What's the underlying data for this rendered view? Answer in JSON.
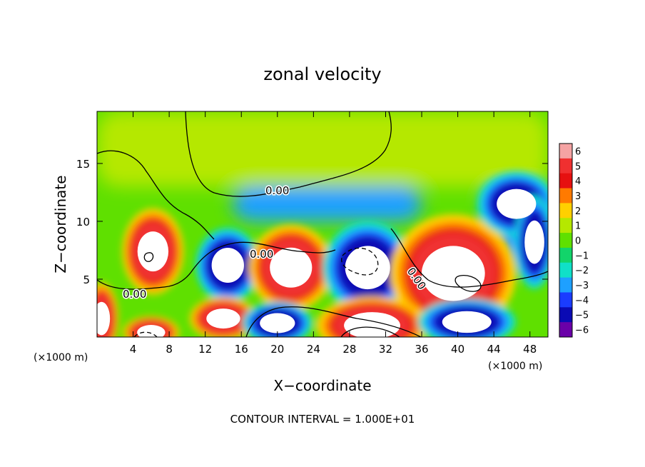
{
  "chart_data": {
    "type": "heatmap",
    "title": "zonal velocity",
    "xlabel": "X−coordinate",
    "ylabel": "Z−coordinate",
    "x_unit": "(×1000 m)",
    "x_unit_right": "(×1000 m)",
    "xlim": [
      0,
      50
    ],
    "ylim": [
      0,
      19.5
    ],
    "x_ticks": [
      4,
      8,
      12,
      16,
      20,
      24,
      28,
      32,
      36,
      40,
      44,
      48
    ],
    "x_tick_labels": [
      "4",
      "8",
      "12",
      "16",
      "20",
      "24",
      "28",
      "32",
      "36",
      "40",
      "44",
      "48"
    ],
    "y_ticks": [
      5,
      10,
      15
    ],
    "y_tick_labels": [
      "5",
      "10",
      "15"
    ],
    "footer": "CONTOUR INTERVAL = 1.000E+01",
    "contour_labels": [
      "0.00",
      "0.00",
      "0.00",
      "0.00"
    ],
    "colorbar": {
      "levels": [
        6,
        5,
        4,
        3,
        2,
        1,
        0,
        -1,
        -2,
        -3,
        -4,
        -5,
        -6
      ],
      "labels": [
        "6",
        "5",
        "4",
        "3",
        "2",
        "1",
        "0",
        "−1",
        "−2",
        "−3",
        "−4",
        "−5",
        "−6"
      ],
      "colors": [
        "#f5a3a3",
        "#f03030",
        "#e61010",
        "#ff7a00",
        "#ffd000",
        "#b5e800",
        "#5fe000",
        "#12d46a",
        "#10e0c8",
        "#1ea0ff",
        "#1a3cff",
        "#0a0ab4",
        "#6a00a8"
      ]
    },
    "features": [
      {
        "kind": "upper-region",
        "x": [
          0,
          50
        ],
        "z": [
          13,
          19.5
        ],
        "value": 1
      },
      {
        "kind": "jet",
        "x": [
          15,
          36
        ],
        "z": [
          10,
          13
        ],
        "value": -3
      },
      {
        "kind": "jet",
        "x": [
          43,
          50
        ],
        "z": [
          6,
          13
        ],
        "value": -3
      },
      {
        "kind": "extreme",
        "x": 6.2,
        "z": 7.4,
        "rx": 2.2,
        "rz": 2.4,
        "value": 6
      },
      {
        "kind": "extreme",
        "x": 14.5,
        "z": 6.2,
        "rx": 2.3,
        "rz": 2.1,
        "value": -5
      },
      {
        "kind": "extreme",
        "x": 21.5,
        "z": 6.0,
        "rx": 3.0,
        "rz": 2.4,
        "value": 6
      },
      {
        "kind": "extreme",
        "x": 30.0,
        "z": 6.0,
        "rx": 3.2,
        "rz": 2.6,
        "value": -6
      },
      {
        "kind": "extreme",
        "x": 39.5,
        "z": 5.5,
        "rx": 4.5,
        "rz": 3.3,
        "value": 6
      },
      {
        "kind": "extreme",
        "x": 46.5,
        "z": 11.5,
        "rx": 2.8,
        "rz": 1.8,
        "value": -6
      },
      {
        "kind": "extreme",
        "x": 48.5,
        "z": 8.2,
        "rx": 1.4,
        "rz": 2.6,
        "value": -6
      },
      {
        "kind": "extreme",
        "x": 14.0,
        "z": 1.6,
        "rx": 2.4,
        "rz": 1.2,
        "value": 6
      },
      {
        "kind": "extreme",
        "x": 20.0,
        "z": 1.2,
        "rx": 2.5,
        "rz": 1.2,
        "value": -5
      },
      {
        "kind": "extreme",
        "x": 30.5,
        "z": 1.0,
        "rx": 4.0,
        "rz": 1.6,
        "value": 6
      },
      {
        "kind": "extreme",
        "x": 41.0,
        "z": 1.3,
        "rx": 3.5,
        "rz": 1.3,
        "value": -5
      },
      {
        "kind": "extreme",
        "x": 6.0,
        "z": 0.4,
        "rx": 2.0,
        "rz": 0.9,
        "value": 6
      },
      {
        "kind": "extreme",
        "x": 0.5,
        "z": 1.6,
        "rx": 1.2,
        "rz": 2.0,
        "value": 6
      }
    ]
  }
}
